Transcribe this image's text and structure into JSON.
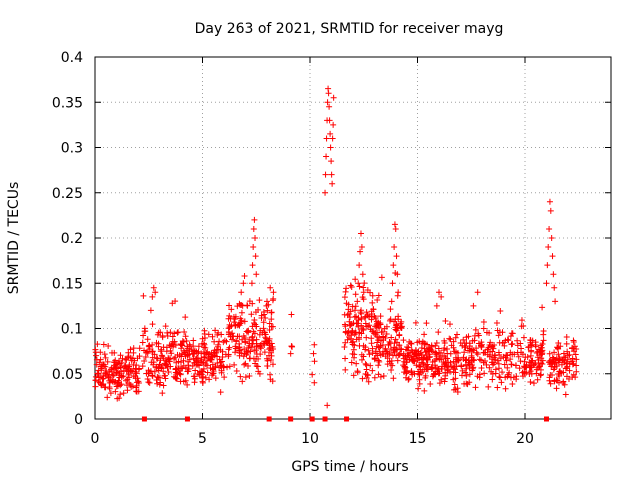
{
  "chart_data": {
    "type": "scatter",
    "title": "Day 263 of 2021, SRMTID for receiver mayg",
    "xlabel": "GPS time / hours",
    "ylabel": "SRMTID / TECUs",
    "xlim": [
      0,
      24
    ],
    "ylim": [
      0,
      0.4
    ],
    "x_ticks": [
      0,
      5,
      10,
      15,
      20
    ],
    "x_tick_labels": [
      "0",
      "5",
      "10",
      "15",
      "20"
    ],
    "y_ticks": [
      0,
      0.05,
      0.1,
      0.15,
      0.2,
      0.25,
      0.3,
      0.35,
      0.4
    ],
    "y_tick_labels": [
      "0",
      "0.05",
      "0.1",
      "0.15",
      "0.2",
      "0.25",
      "0.3",
      "0.35",
      "0.4"
    ],
    "grid": true,
    "marker": "+",
    "series_color": "#ff0000",
    "baseline_markers_x": [
      2.3,
      4.3,
      8.1,
      9.1,
      10.1,
      10.7,
      11.7,
      21.0
    ],
    "bands": [
      {
        "start": 0.0,
        "end": 2.1,
        "center": 0.052,
        "spread": 0.022,
        "count": 170
      },
      {
        "start": 2.2,
        "end": 4.1,
        "center": 0.068,
        "spread": 0.03,
        "count": 150
      },
      {
        "start": 4.1,
        "end": 6.1,
        "center": 0.066,
        "spread": 0.028,
        "count": 160
      },
      {
        "start": 6.1,
        "end": 8.3,
        "center": 0.088,
        "spread": 0.038,
        "count": 190
      },
      {
        "start": 9.1,
        "end": 9.2,
        "center": 0.07,
        "spread": 0.028,
        "count": 5
      },
      {
        "start": 10.1,
        "end": 10.25,
        "center": 0.06,
        "spread": 0.025,
        "count": 3
      },
      {
        "start": 11.6,
        "end": 13.0,
        "center": 0.095,
        "spread": 0.045,
        "count": 130
      },
      {
        "start": 13.0,
        "end": 14.3,
        "center": 0.085,
        "spread": 0.035,
        "count": 120
      },
      {
        "start": 14.3,
        "end": 16.0,
        "center": 0.065,
        "spread": 0.025,
        "count": 150
      },
      {
        "start": 16.0,
        "end": 18.0,
        "center": 0.065,
        "spread": 0.028,
        "count": 150
      },
      {
        "start": 18.0,
        "end": 20.9,
        "center": 0.07,
        "spread": 0.03,
        "count": 190
      },
      {
        "start": 21.1,
        "end": 22.4,
        "center": 0.062,
        "spread": 0.025,
        "count": 100
      }
    ],
    "spikes": [
      {
        "start": 10.7,
        "end": 11.1,
        "values": [
          0.25,
          0.27,
          0.29,
          0.31,
          0.33,
          0.35,
          0.365,
          0.36,
          0.345,
          0.33,
          0.315,
          0.3,
          0.285,
          0.27,
          0.26,
          0.31,
          0.325,
          0.355
        ]
      },
      {
        "start": 7.3,
        "end": 7.5,
        "values": [
          0.15,
          0.17,
          0.19,
          0.21,
          0.22,
          0.2,
          0.18,
          0.16
        ]
      },
      {
        "start": 12.2,
        "end": 12.5,
        "values": [
          0.13,
          0.15,
          0.17,
          0.185,
          0.205,
          0.19,
          0.16,
          0.14
        ]
      },
      {
        "start": 13.8,
        "end": 14.1,
        "values": [
          0.13,
          0.15,
          0.17,
          0.19,
          0.215,
          0.21,
          0.18,
          0.16,
          0.14
        ]
      },
      {
        "start": 21.0,
        "end": 21.4,
        "values": [
          0.15,
          0.17,
          0.19,
          0.21,
          0.24,
          0.23,
          0.2,
          0.18,
          0.16,
          0.145,
          0.13
        ]
      },
      {
        "start": 2.6,
        "end": 2.8,
        "values": [
          0.12,
          0.135,
          0.145,
          0.14
        ]
      },
      {
        "start": 8.0,
        "end": 8.3,
        "values": [
          0.13,
          0.145,
          0.14
        ]
      },
      {
        "start": 15.9,
        "end": 16.1,
        "values": [
          0.125,
          0.14,
          0.135
        ]
      },
      {
        "start": 17.6,
        "end": 17.8,
        "values": [
          0.125,
          0.14
        ]
      },
      {
        "start": 6.8,
        "end": 6.9,
        "values": [
          0.14,
          0.15
        ]
      },
      {
        "start": 10.8,
        "end": 10.85,
        "values": [
          0.015
        ]
      },
      {
        "start": 10.2,
        "end": 10.25,
        "values": [
          0.082
        ]
      },
      {
        "start": 10.2,
        "end": 10.25,
        "values": [
          0.04
        ]
      }
    ]
  }
}
